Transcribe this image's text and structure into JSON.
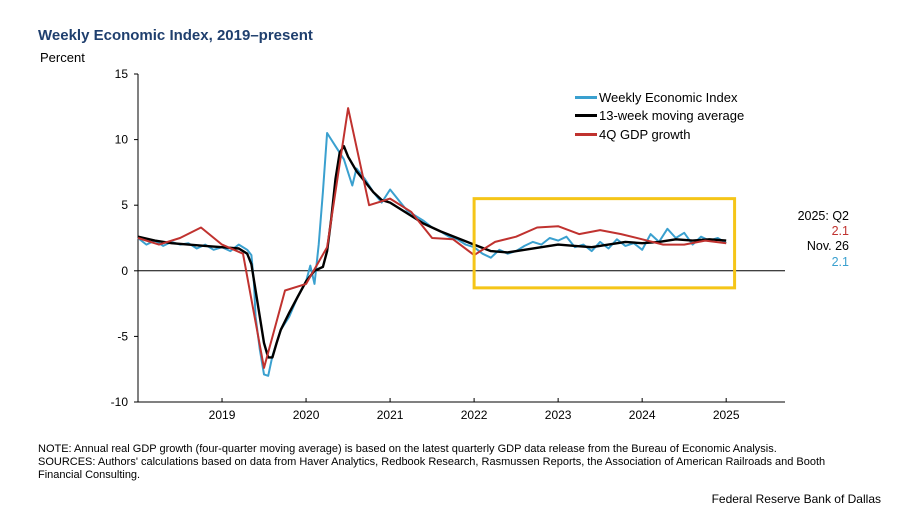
{
  "header": {
    "title": "Weekly Economic Index, 2019–present",
    "ylabel": "Percent"
  },
  "legend": {
    "items": [
      {
        "label": "Weekly Economic Index",
        "color": "#3aa0cf"
      },
      {
        "label": "13-week moving average",
        "color": "#000000"
      },
      {
        "label": "4Q GDP growth",
        "color": "#c0322f"
      }
    ]
  },
  "annotations": {
    "gdp_label": "2025: Q2",
    "gdp_value": "2.1",
    "wei_label": "Nov. 26",
    "wei_value": "2.1"
  },
  "colors": {
    "wei": "#3aa0cf",
    "ma": "#000000",
    "gdp": "#c0322f",
    "highlight": "#f5c518"
  },
  "chart_data": {
    "type": "line",
    "title": "Weekly Economic Index, 2019–present",
    "ylabel": "Percent",
    "ylim": [
      -10,
      15
    ],
    "yticks": [
      15,
      10,
      5,
      0,
      -5,
      -10
    ],
    "xlim": [
      2018.0,
      2025.7
    ],
    "xticks": [
      2019,
      2020,
      2021,
      2022,
      2023,
      2024,
      2025
    ],
    "grid": false,
    "legend_position": "top-right",
    "highlight_box": {
      "x": [
        2022.0,
        2025.1
      ],
      "y": [
        -1.3,
        5.5
      ],
      "color": "#f5c518"
    },
    "series": [
      {
        "name": "Weekly Economic Index",
        "color": "#3aa0cf",
        "x": [
          2018.0,
          2018.1,
          2018.2,
          2018.3,
          2018.4,
          2018.5,
          2018.6,
          2018.7,
          2018.8,
          2018.9,
          2019.0,
          2019.1,
          2019.2,
          2019.3,
          2019.35,
          2019.38,
          2019.4,
          2019.45,
          2019.5,
          2019.55,
          2019.6,
          2019.7,
          2019.8,
          2019.9,
          2020.0,
          2020.05,
          2020.1,
          2020.15,
          2020.2,
          2020.25,
          2020.3,
          2020.35,
          2020.4,
          2020.45,
          2020.5,
          2020.55,
          2020.6,
          2020.7,
          2020.8,
          2020.9,
          2021.0,
          2021.1,
          2021.2,
          2021.3,
          2021.4,
          2021.5,
          2021.6,
          2021.7,
          2021.8,
          2021.9,
          2022.0,
          2022.1,
          2022.2,
          2022.3,
          2022.4,
          2022.5,
          2022.6,
          2022.7,
          2022.8,
          2022.9,
          2023.0,
          2023.1,
          2023.2,
          2023.3,
          2023.4,
          2023.5,
          2023.6,
          2023.7,
          2023.8,
          2023.9,
          2024.0,
          2024.1,
          2024.2,
          2024.3,
          2024.4,
          2024.5,
          2024.6,
          2024.7,
          2024.8,
          2024.9,
          2025.0
        ],
        "values": [
          2.5,
          2.0,
          2.3,
          1.9,
          2.2,
          2.0,
          2.1,
          1.7,
          2.0,
          1.6,
          1.8,
          1.5,
          2.0,
          1.6,
          1.2,
          -1.0,
          -3.5,
          -6.0,
          -7.9,
          -8.0,
          -6.5,
          -4.5,
          -3.5,
          -2.0,
          -0.8,
          0.4,
          -1.0,
          2.0,
          6.0,
          10.5,
          10.0,
          9.5,
          9.0,
          8.5,
          7.5,
          6.5,
          7.8,
          7.0,
          6.0,
          5.2,
          6.2,
          5.4,
          4.6,
          4.2,
          3.8,
          3.3,
          3.0,
          2.6,
          2.4,
          2.0,
          1.8,
          1.3,
          1.0,
          1.6,
          1.3,
          1.5,
          1.9,
          2.2,
          2.0,
          2.5,
          2.3,
          2.6,
          1.8,
          2.0,
          1.5,
          2.2,
          1.7,
          2.4,
          1.9,
          2.1,
          1.6,
          2.8,
          2.2,
          3.2,
          2.5,
          2.9,
          2.0,
          2.6,
          2.3,
          2.5,
          2.1
        ]
      },
      {
        "name": "13-week moving average",
        "color": "#000000",
        "x": [
          2018.0,
          2018.2,
          2018.4,
          2018.6,
          2018.8,
          2019.0,
          2019.2,
          2019.3,
          2019.35,
          2019.4,
          2019.45,
          2019.5,
          2019.55,
          2019.6,
          2019.65,
          2019.7,
          2019.8,
          2019.9,
          2020.0,
          2020.1,
          2020.2,
          2020.25,
          2020.3,
          2020.35,
          2020.4,
          2020.45,
          2020.5,
          2020.6,
          2020.7,
          2020.8,
          2020.9,
          2021.0,
          2021.2,
          2021.4,
          2021.6,
          2021.8,
          2022.0,
          2022.2,
          2022.4,
          2022.6,
          2022.8,
          2023.0,
          2023.2,
          2023.4,
          2023.6,
          2023.8,
          2024.0,
          2024.2,
          2024.4,
          2024.6,
          2024.8,
          2025.0
        ],
        "values": [
          2.6,
          2.3,
          2.1,
          2.0,
          1.9,
          1.8,
          1.7,
          1.3,
          0.5,
          -1.5,
          -3.5,
          -5.5,
          -6.6,
          -6.6,
          -5.5,
          -4.5,
          -3.2,
          -2.0,
          -0.8,
          0.0,
          0.3,
          1.5,
          4.0,
          7.0,
          9.0,
          9.5,
          8.7,
          7.6,
          6.8,
          6.0,
          5.4,
          5.2,
          4.4,
          3.6,
          3.0,
          2.5,
          2.0,
          1.5,
          1.4,
          1.6,
          1.8,
          2.0,
          1.9,
          1.8,
          2.0,
          2.2,
          2.1,
          2.2,
          2.4,
          2.3,
          2.4,
          2.3
        ]
      },
      {
        "name": "4Q GDP growth",
        "color": "#c0322f",
        "x": [
          2018.0,
          2018.25,
          2018.5,
          2018.75,
          2019.0,
          2019.25,
          2019.5,
          2019.75,
          2020.0,
          2020.25,
          2020.5,
          2020.75,
          2021.0,
          2021.25,
          2021.5,
          2021.75,
          2022.0,
          2022.25,
          2022.5,
          2022.75,
          2023.0,
          2023.25,
          2023.5,
          2023.75,
          2024.0,
          2024.25,
          2024.5,
          2024.75,
          2025.0
        ],
        "values": [
          2.5,
          2.0,
          2.5,
          3.3,
          2.0,
          1.3,
          -7.4,
          -1.5,
          -1.0,
          1.8,
          12.4,
          5.0,
          5.5,
          4.5,
          2.5,
          2.4,
          1.2,
          2.2,
          2.6,
          3.3,
          3.4,
          2.8,
          3.1,
          2.8,
          2.4,
          2.0,
          2.0,
          2.3,
          2.1
        ]
      }
    ]
  },
  "footer": {
    "note": "NOTE: Annual real GDP growth (four-quarter moving average) is based on the latest quarterly GDP data release from the Bureau of Economic Analysis.",
    "sources": "SOURCES: Authors' calculations based on data from Haver Analytics, Redbook Research, Rasmussen Reports, the Association of American Railroads and Booth Financial Consulting.",
    "credit": "Federal Reserve Bank of Dallas"
  }
}
